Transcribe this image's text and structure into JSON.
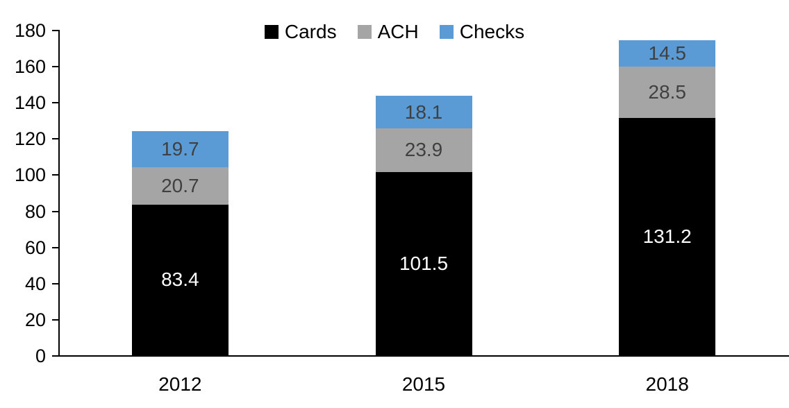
{
  "chart_data": {
    "type": "bar",
    "stacked": true,
    "title": "",
    "categories": [
      "2012",
      "2015",
      "2018"
    ],
    "series": [
      {
        "name": "Cards",
        "color": "#000000",
        "label_color": "#ffffff",
        "values": [
          83.4,
          101.5,
          131.2
        ]
      },
      {
        "name": "ACH",
        "color": "#A5A5A5",
        "label_color": "#404040",
        "values": [
          20.7,
          23.9,
          28.5
        ]
      },
      {
        "name": "Checks",
        "color": "#5B9BD5",
        "label_color": "#404040",
        "values": [
          19.7,
          18.1,
          14.5
        ]
      }
    ],
    "totals": [
      123.8,
      143.5,
      174.2
    ],
    "ylim": [
      0,
      180
    ],
    "yticks": [
      0,
      20,
      40,
      60,
      80,
      100,
      120,
      140,
      160,
      180
    ],
    "xlabel": "",
    "ylabel": "",
    "grid": false,
    "legend_position": "top-center",
    "legend_order": [
      "Cards",
      "ACH",
      "Checks"
    ],
    "axis_color": "#000000",
    "background_color": "#ffffff"
  }
}
